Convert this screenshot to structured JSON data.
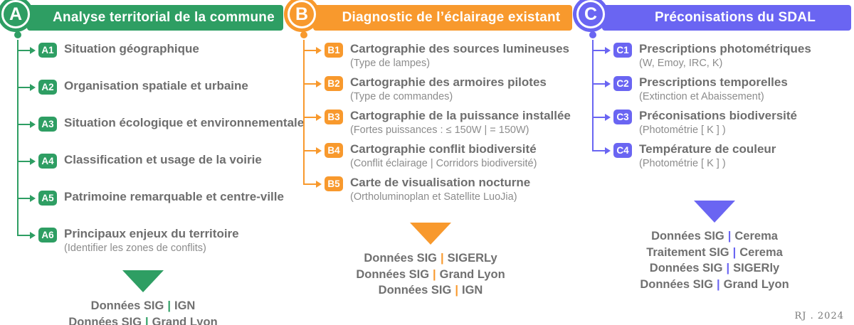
{
  "separator": "|",
  "credit": "RJ . 2024",
  "columns": [
    {
      "id": "A",
      "accent": "#2E9E63",
      "title": "Analyse territorial de la commune",
      "items": [
        {
          "badge": "A1",
          "title": "Situation géographique",
          "subtitle": ""
        },
        {
          "badge": "A2",
          "title": "Organisation spatiale et urbaine",
          "subtitle": ""
        },
        {
          "badge": "A3",
          "title": "Situation écologique et environnementale",
          "subtitle": ""
        },
        {
          "badge": "A4",
          "title": "Classification et usage de la voirie",
          "subtitle": ""
        },
        {
          "badge": "A5",
          "title": "Patrimoine remarquable et centre-ville",
          "subtitle": ""
        },
        {
          "badge": "A6",
          "title": "Principaux enjeux du territoire",
          "subtitle": "(Identifier les zones de conflits)"
        }
      ],
      "sources": [
        {
          "label": "Données SIG",
          "value": "IGN"
        },
        {
          "label": "Données SIG",
          "value": "Grand Lyon"
        }
      ]
    },
    {
      "id": "B",
      "accent": "#F8992D",
      "title": "Diagnostic de l’éclairage existant",
      "items": [
        {
          "badge": "B1",
          "title": "Cartographie des sources lumineuses",
          "subtitle": "(Type de lampes)"
        },
        {
          "badge": "B2",
          "title": "Cartographie des armoires pilotes",
          "subtitle": "(Type de commandes)"
        },
        {
          "badge": "B3",
          "title": "Cartographie de la puissance installée",
          "subtitle": "(Fortes puissances : ≤ 150W | = 150W)"
        },
        {
          "badge": "B4",
          "title": "Cartographie conflit biodiversité",
          "subtitle": "(Conflit éclairage | Corridors biodiversité)"
        },
        {
          "badge": "B5",
          "title": "Carte de visualisation nocturne",
          "subtitle": "(Ortholuminoplan et Satellite LuoJia)"
        }
      ],
      "sources": [
        {
          "label": "Données SIG",
          "value": "SIGERLy"
        },
        {
          "label": "Données SIG",
          "value": "Grand Lyon"
        },
        {
          "label": "Données SIG",
          "value": "IGN"
        }
      ]
    },
    {
      "id": "C",
      "accent": "#6A65F2",
      "title": "Préconisations du SDAL",
      "items": [
        {
          "badge": "C1",
          "title": "Prescriptions photométriques",
          "subtitle": "(W, Emoy, IRC, K)"
        },
        {
          "badge": "C2",
          "title": "Prescriptions temporelles",
          "subtitle": "(Extinction et Abaissement)"
        },
        {
          "badge": "C3",
          "title": "Préconisations biodiversité",
          "subtitle": "(Photométrie [ K ] )"
        },
        {
          "badge": "C4",
          "title": "Température de couleur",
          "subtitle": "(Photométrie [ K ] )"
        }
      ],
      "sources": [
        {
          "label": "Données SIG",
          "value": "Cerema"
        },
        {
          "label": "Traitement SIG",
          "value": "Cerema"
        },
        {
          "label": "Données SIG",
          "value": "SIGERly"
        },
        {
          "label": "Données SIG",
          "value": "Grand Lyon"
        }
      ]
    }
  ]
}
